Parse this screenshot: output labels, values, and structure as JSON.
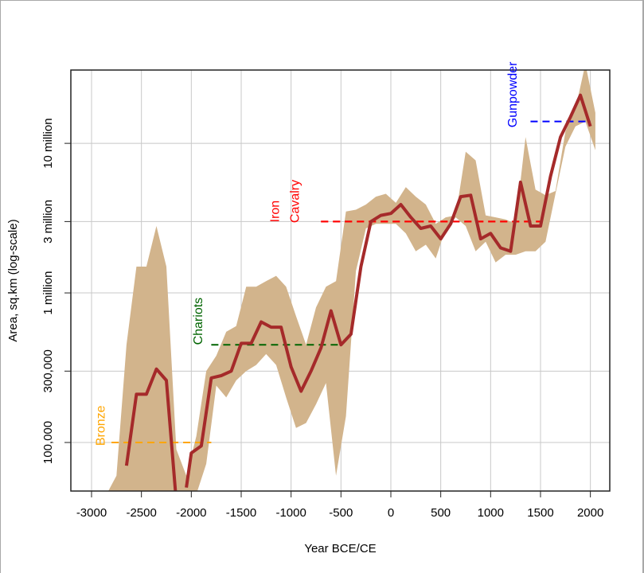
{
  "chart_data": {
    "type": "area",
    "title": "",
    "xlabel": "Year BCE/CE",
    "ylabel": "Area, sq.km (log-scale)",
    "y_scale": "log",
    "xlim": [
      -3200,
      2200
    ],
    "ylim": [
      57000,
      32000000
    ],
    "grid": true,
    "x_ticks": [
      -3000,
      -2500,
      -2000,
      -1500,
      -1000,
      -500,
      0,
      500,
      1000,
      1500,
      2000
    ],
    "x_tick_labels": [
      "-3000",
      "-2500",
      "-2000",
      "-1500",
      "-1000",
      "-500",
      "0",
      "500",
      "1000",
      "1500",
      "2000"
    ],
    "y_ticks": [
      100000,
      300000,
      1000000,
      3000000,
      10000000
    ],
    "y_tick_labels": [
      "100,000",
      "300,000",
      "1 million",
      "3 million",
      "10 million"
    ],
    "colors": {
      "line": "#a52a2a",
      "band": "#d2b48c",
      "grid": "#c8c8c8",
      "bronze": "#ffa500",
      "chariots": "#006400",
      "iron_cavalry": "#ff0000",
      "gunpowder": "#0000ff"
    },
    "series": [
      {
        "segments": [
          [
            [
              -2650,
              70000
            ],
            [
              -2550,
              210000
            ],
            [
              -2450,
              210000
            ],
            [
              -2350,
              310000
            ],
            [
              -2250,
              260000
            ],
            [
              -2150,
              40000
            ]
          ],
          [
            [
              -2050,
              50000
            ],
            [
              -2000,
              85000
            ],
            [
              -1900,
              95000
            ],
            [
              -1800,
              270000
            ],
            [
              -1700,
              280000
            ],
            [
              -1600,
              300000
            ],
            [
              -1500,
              460000
            ],
            [
              -1400,
              460000
            ],
            [
              -1300,
              640000
            ],
            [
              -1200,
              590000
            ],
            [
              -1100,
              590000
            ],
            [
              -1000,
              320000
            ],
            [
              -900,
              220000
            ],
            [
              -800,
              300000
            ],
            [
              -700,
              430000
            ],
            [
              -600,
              760000
            ],
            [
              -500,
              450000
            ],
            [
              -400,
              530000
            ],
            [
              -300,
              1500000
            ],
            [
              -200,
              3000000
            ],
            [
              -100,
              3300000
            ],
            [
              0,
              3400000
            ],
            [
              100,
              3900000
            ],
            [
              200,
              3200000
            ],
            [
              300,
              2700000
            ],
            [
              400,
              2800000
            ],
            [
              500,
              2300000
            ],
            [
              600,
              2900000
            ],
            [
              700,
              4400000
            ],
            [
              800,
              4500000
            ],
            [
              900,
              2300000
            ],
            [
              1000,
              2500000
            ],
            [
              1100,
              2000000
            ],
            [
              1200,
              1900000
            ],
            [
              1300,
              5500000
            ],
            [
              1400,
              2800000
            ],
            [
              1500,
              2800000
            ],
            [
              1600,
              6000000
            ],
            [
              1700,
              11000000
            ],
            [
              1800,
              15000000
            ],
            [
              1900,
              21000000
            ],
            [
              2000,
              13000000
            ]
          ]
        ]
      }
    ],
    "band": {
      "x": [
        -2950,
        -2850,
        -2750,
        -2650,
        -2550,
        -2450,
        -2350,
        -2250,
        -2150,
        -2050,
        -1950,
        -1850,
        -1750,
        -1650,
        -1550,
        -1450,
        -1350,
        -1250,
        -1150,
        -1050,
        -950,
        -850,
        -750,
        -650,
        -550,
        -450,
        -350,
        -250,
        -150,
        -50,
        50,
        150,
        250,
        350,
        450,
        550,
        650,
        750,
        850,
        950,
        1050,
        1150,
        1250,
        1350,
        1450,
        1550,
        1650,
        1750,
        1850,
        1950,
        2050
      ],
      "lower": [
        45000,
        45000,
        45000,
        45000,
        45000,
        45000,
        45000,
        45000,
        45000,
        45000,
        45000,
        72000,
        240000,
        200000,
        260000,
        300000,
        330000,
        390000,
        330000,
        200000,
        125000,
        135000,
        180000,
        250000,
        60000,
        150000,
        1400000,
        2700000,
        2900000,
        2900000,
        2900000,
        2500000,
        1900000,
        2100000,
        1700000,
        2700000,
        3200000,
        2800000,
        1900000,
        2200000,
        1600000,
        1800000,
        1800000,
        1900000,
        1900000,
        2200000,
        4600000,
        9500000,
        13000000,
        14000000,
        9000000
      ],
      "upper": [
        45000,
        45000,
        60000,
        450000,
        1500000,
        1500000,
        2800000,
        1500000,
        90000,
        60000,
        110000,
        300000,
        380000,
        550000,
        600000,
        1100000,
        1100000,
        1200000,
        1300000,
        1100000,
        700000,
        450000,
        800000,
        1100000,
        1200000,
        3500000,
        3600000,
        3900000,
        4400000,
        4600000,
        4000000,
        5100000,
        4400000,
        3900000,
        2900000,
        3200000,
        3300000,
        8800000,
        7700000,
        3300000,
        3200000,
        3100000,
        2900000,
        11000000,
        4900000,
        4500000,
        4800000,
        12000000,
        17000000,
        34000000,
        16000000
      ]
    },
    "annotations": [
      {
        "label": "Bronze",
        "x0": -2800,
        "x1": -1800,
        "y": 100000,
        "text_x": -2870,
        "color": "#ffa500"
      },
      {
        "label": "Chariots",
        "x0": -1800,
        "x1": -500,
        "y": 450000,
        "text_x": -1890,
        "color": "#006400"
      },
      {
        "label": "Iron",
        "x0": -700,
        "x1": 1500,
        "y": 3000000,
        "text_x": -1120,
        "color": "#ff0000"
      },
      {
        "label": "Cavalry",
        "x0": -700,
        "x1": 1500,
        "y": 3000000,
        "text_x": -920,
        "color": "#ff0000"
      },
      {
        "label": "Gunpowder",
        "x0": 1400,
        "x1": 2000,
        "y": 14000000,
        "text_x": 1260,
        "color": "#0000ff"
      }
    ]
  }
}
